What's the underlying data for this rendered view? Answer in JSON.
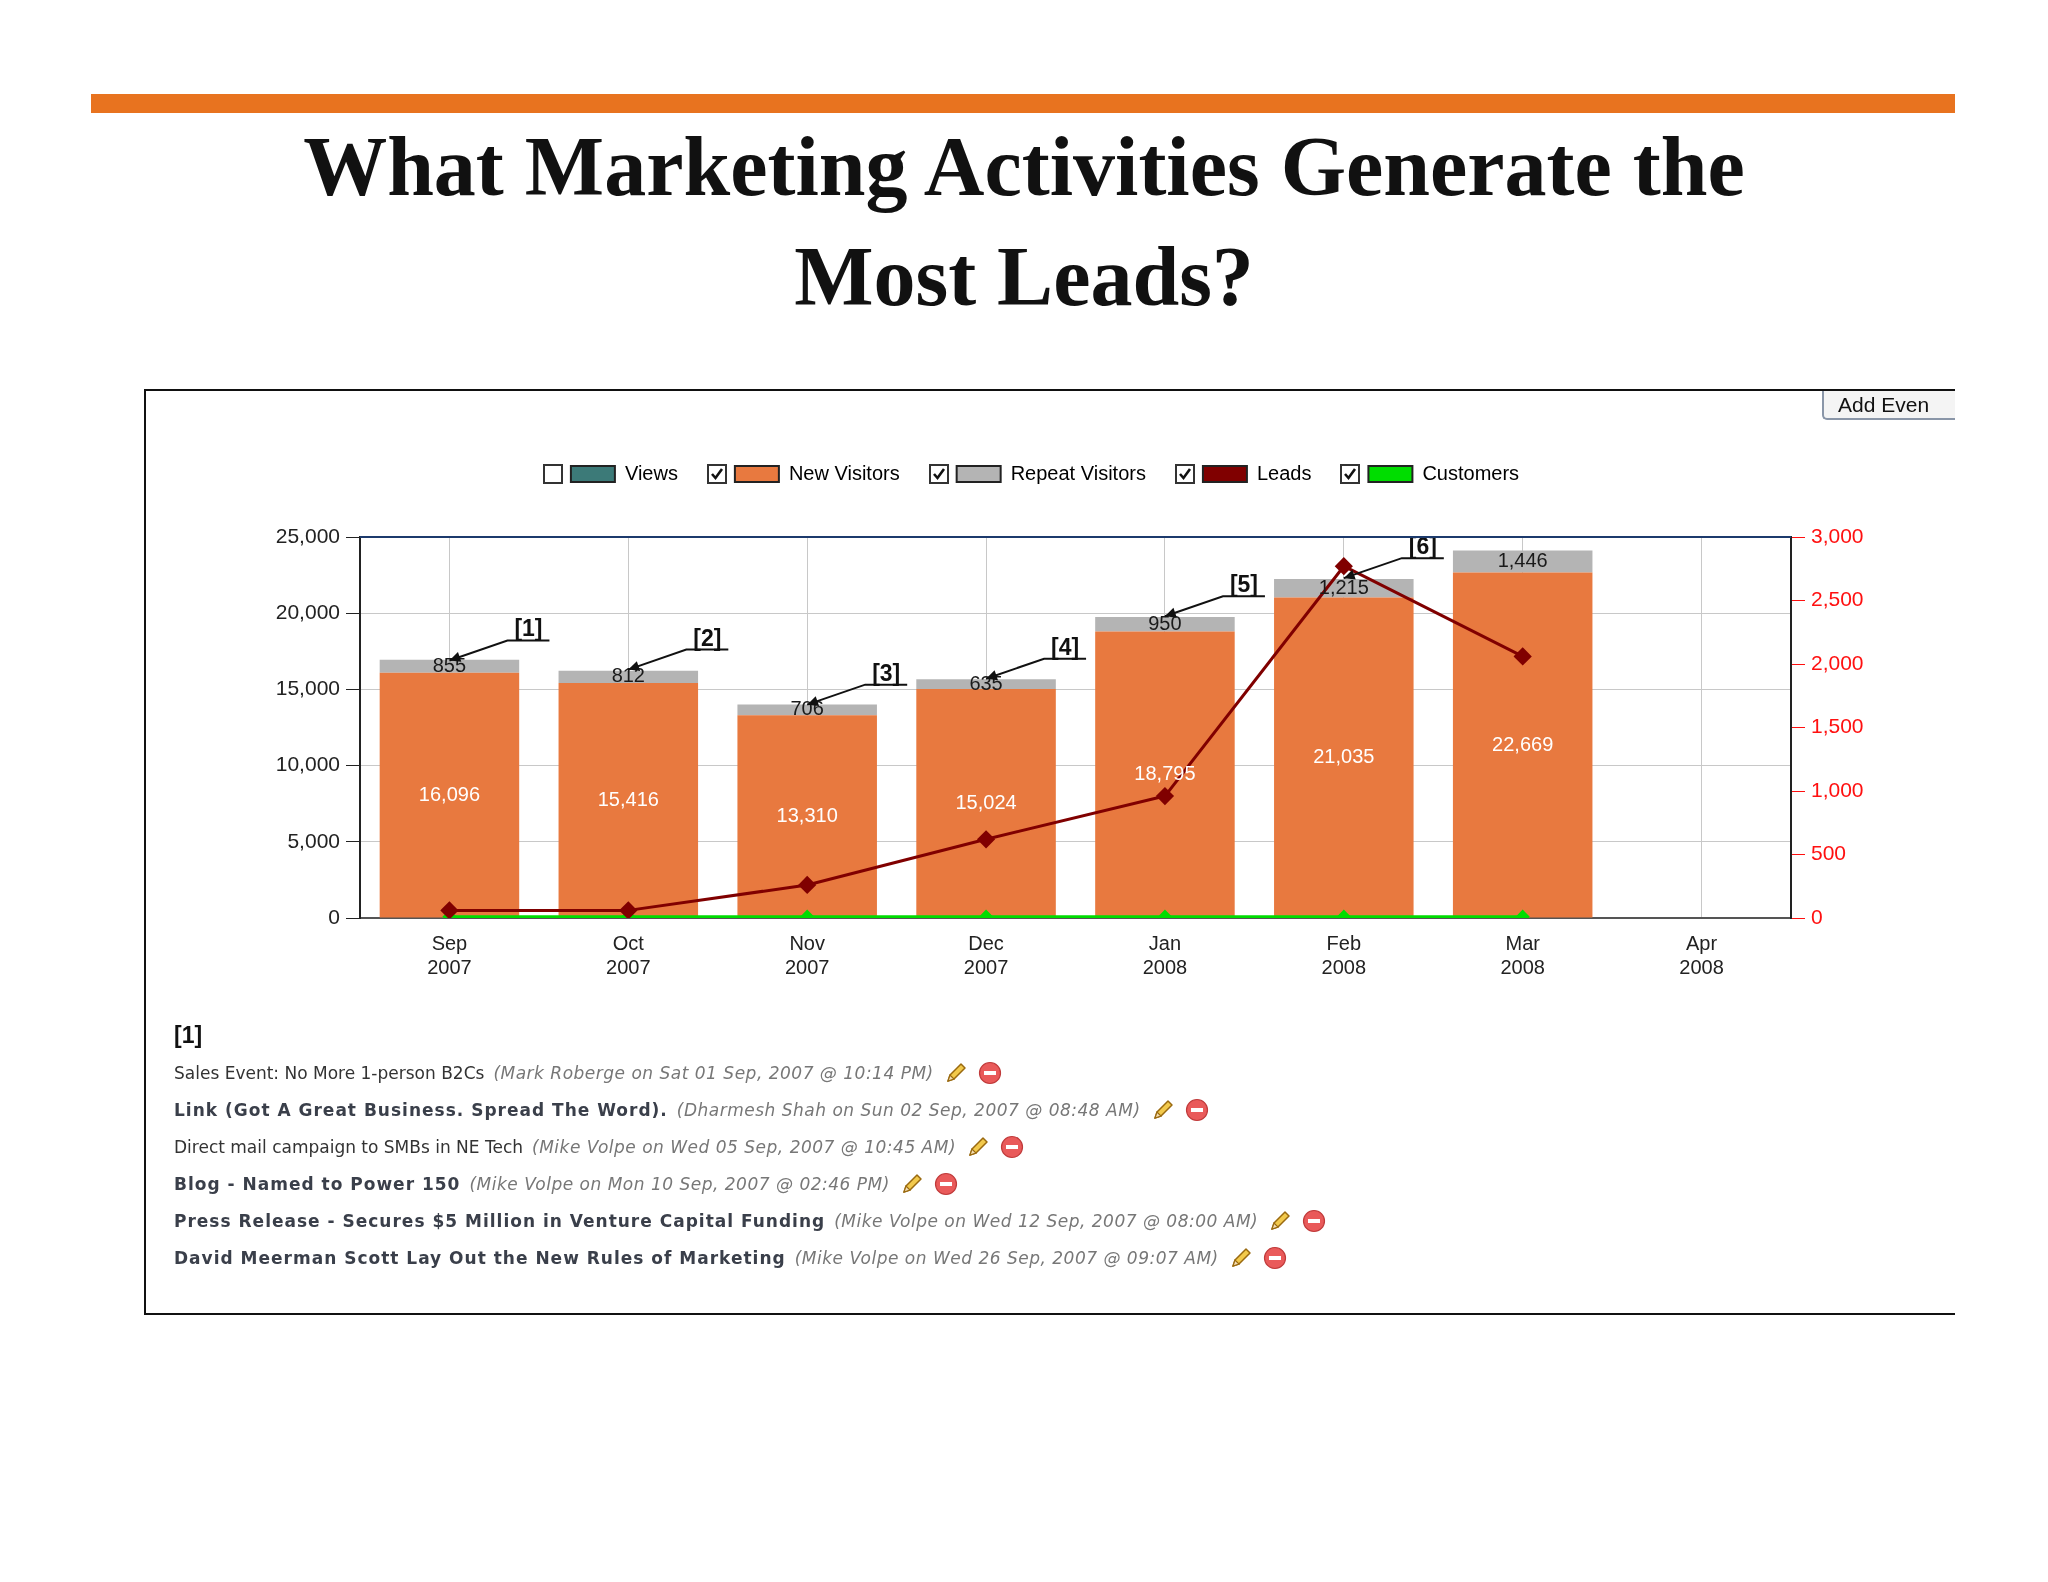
{
  "chart_data": {
    "type": "bar",
    "title": "What Marketing Activities Generate the Most Leads?",
    "categories": [
      "Sep 2007",
      "Oct 2007",
      "Nov 2007",
      "Dec 2007",
      "Jan 2008",
      "Feb 2008",
      "Mar 2008",
      "Apr 2008"
    ],
    "series": [
      {
        "name": "Views",
        "color": "#3c7a78",
        "values": [
          null,
          null,
          null,
          null,
          null,
          null,
          null,
          null
        ]
      },
      {
        "name": "New Visitors",
        "color": "#e8793f",
        "values": [
          16096,
          15416,
          13310,
          15024,
          18795,
          21035,
          22669,
          null
        ],
        "value_labels": [
          "16,096",
          "15,416",
          "13,310",
          "15,024",
          "18,795",
          "21,035",
          "22,669",
          null
        ]
      },
      {
        "name": "Repeat Visitors",
        "color": "#b4b4b4",
        "values": [
          855,
          812,
          706,
          635,
          950,
          1215,
          1446,
          null
        ],
        "value_labels": [
          "855",
          "812",
          "706",
          "635",
          "950",
          "1,215",
          "1,446",
          null
        ]
      },
      {
        "name": "Leads",
        "type": "line",
        "axis": "y2",
        "color": "#800000",
        "values": [
          60,
          60,
          260,
          620,
          960,
          2770,
          2060,
          null
        ]
      },
      {
        "name": "Customers",
        "type": "line",
        "axis": "y2",
        "color": "#00dd00",
        "values": [
          10,
          10,
          10,
          10,
          10,
          10,
          10,
          null
        ]
      }
    ],
    "stacked": true,
    "ylim": [
      0,
      25000
    ],
    "yticks": [
      0,
      {
        "value": 5000,
        "label": "5,000"
      },
      {
        "value": 10000,
        "label": "10,000"
      },
      {
        "value": 15000,
        "label": "15,000"
      },
      {
        "value": 20000,
        "label": "20,000"
      },
      {
        "value": 25000,
        "label": "25,000"
      }
    ],
    "y2lim": [
      0,
      3000
    ],
    "y2ticks": [
      0,
      500,
      {
        "value": 1000,
        "label": "1,000"
      },
      {
        "value": 1500,
        "label": "1,500"
      },
      {
        "value": 2000,
        "label": "2,000"
      },
      {
        "value": 2500,
        "label": "2,500"
      },
      {
        "value": 3000,
        "label": "3,000"
      }
    ],
    "grid": true,
    "legend": "top",
    "marker": "diamond",
    "line_style": "solid",
    "annotations": [
      {
        "text": "[1]",
        "x": "Sep 2007",
        "y": 16900
      },
      {
        "text": "[2]",
        "x": "Oct 2007",
        "y": 16300
      },
      {
        "text": "[3]",
        "x": "Nov 2007",
        "y": 14000
      },
      {
        "text": "[4]",
        "x": "Dec 2007",
        "y": 15700
      },
      {
        "text": "[5]",
        "x": "Jan 2008",
        "y": 19800
      },
      {
        "text": "[6]",
        "x": "Feb 2008",
        "y": 22300
      },
      "Add Even",
      "[1]",
      "Sales Event: No More 1-person B2Cs",
      "(Mark Roberge on Sat 01 Sep, 2007 @ 10:14 PM)",
      "Link (Got A Great Business. Spread The Word).",
      "(Dharmesh Shah on Sun 02 Sep, 2007 @ 08:48 AM)",
      "Direct mail campaign to SMBs in NE Tech",
      "(Mike Volpe on Wed 05 Sep, 2007 @ 10:45 AM)",
      "Blog - Named to Power 150",
      "(Mike Volpe on Mon 10 Sep, 2007 @ 02:46 PM)",
      "Press Release - Secures $5 Million in Venture Capital Funding",
      "(Mike Volpe on Wed 12 Sep, 2007 @ 08:00 AM)",
      "David Meerman Scott Lay Out the New Rules of Marketing",
      "(Mike Volpe on Wed 26 Sep, 2007 @ 09:07 AM)"
    ]
  }
}
